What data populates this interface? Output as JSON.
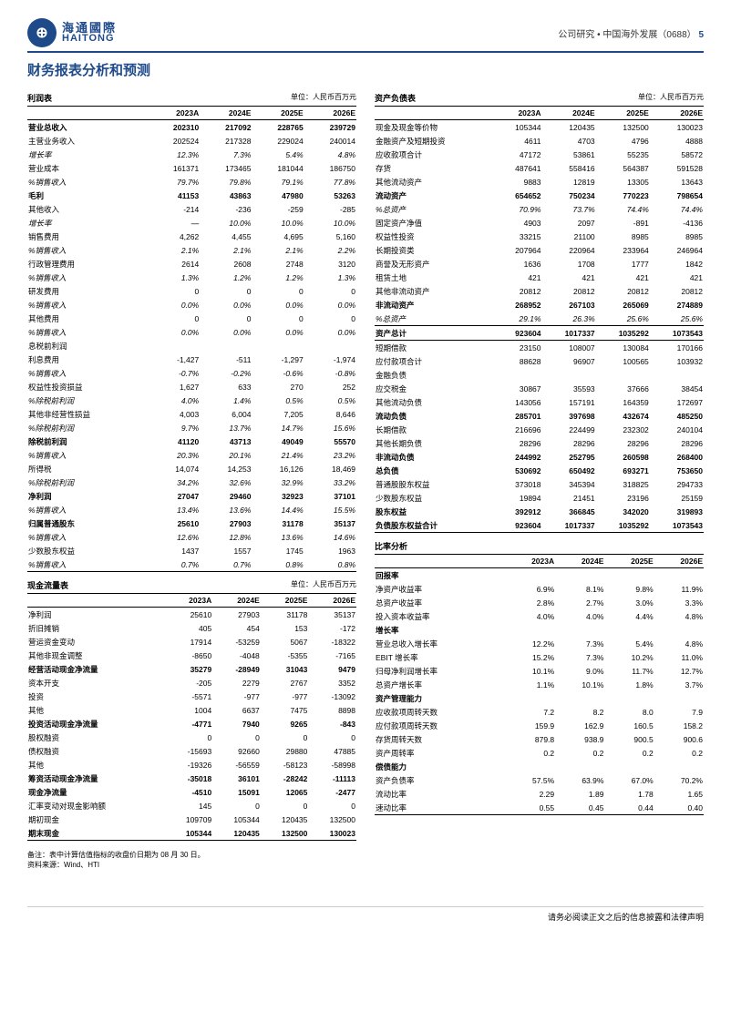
{
  "header": {
    "logo_cn": "海通國際",
    "logo_en": "HAITONG",
    "right": "公司研究 • 中国海外发展（0688）",
    "page": "5"
  },
  "title": "财务报表分析和预测",
  "unit": "单位：人民币百万元",
  "years": [
    "2023A",
    "2024E",
    "2025E",
    "2026E"
  ],
  "income": {
    "title": "利润表",
    "rows": [
      {
        "l": "营业总收入",
        "v": [
          "202310",
          "217092",
          "228765",
          "239729"
        ],
        "b": 1
      },
      {
        "l": "主营业务收入",
        "v": [
          "202524",
          "217328",
          "229024",
          "240014"
        ]
      },
      {
        "l": "增长率",
        "v": [
          "12.3%",
          "7.3%",
          "5.4%",
          "4.8%"
        ],
        "i": 1
      },
      {
        "l": "营业成本",
        "v": [
          "161371",
          "173465",
          "181044",
          "186750"
        ]
      },
      {
        "l": "%销售收入",
        "v": [
          "79.7%",
          "79.8%",
          "79.1%",
          "77.8%"
        ],
        "i": 1
      },
      {
        "l": "毛利",
        "v": [
          "41153",
          "43863",
          "47980",
          "53263"
        ],
        "b": 1
      },
      {
        "l": "其他收入",
        "v": [
          "-214",
          "-236",
          "-259",
          "-285"
        ]
      },
      {
        "l": "增长率",
        "v": [
          "—",
          "10.0%",
          "10.0%",
          "10.0%"
        ],
        "i": 1
      },
      {
        "l": "销售费用",
        "v": [
          "4,262",
          "4,455",
          "4,695",
          "5,160"
        ]
      },
      {
        "l": "%销售收入",
        "v": [
          "2.1%",
          "2.1%",
          "2.1%",
          "2.2%"
        ],
        "i": 1
      },
      {
        "l": "行政管理费用",
        "v": [
          "2614",
          "2608",
          "2748",
          "3120"
        ]
      },
      {
        "l": "%销售收入",
        "v": [
          "1.3%",
          "1.2%",
          "1.2%",
          "1.3%"
        ],
        "i": 1
      },
      {
        "l": "研发费用",
        "v": [
          "0",
          "0",
          "0",
          "0"
        ]
      },
      {
        "l": "%销售收入",
        "v": [
          "0.0%",
          "0.0%",
          "0.0%",
          "0.0%"
        ],
        "i": 1
      },
      {
        "l": "其他费用",
        "v": [
          "0",
          "0",
          "0",
          "0"
        ]
      },
      {
        "l": "%销售收入",
        "v": [
          "0.0%",
          "0.0%",
          "0.0%",
          "0.0%"
        ],
        "i": 1
      },
      {
        "l": "息税前利润",
        "v": [
          "",
          "",
          "",
          ""
        ]
      },
      {
        "l": "利息费用",
        "v": [
          "-1,427",
          "-511",
          "-1,297",
          "-1,974"
        ]
      },
      {
        "l": "%销售收入",
        "v": [
          "-0.7%",
          "-0.2%",
          "-0.6%",
          "-0.8%"
        ],
        "i": 1
      },
      {
        "l": "权益性投资损益",
        "v": [
          "1,627",
          "633",
          "270",
          "252"
        ]
      },
      {
        "l": "%除税前利润",
        "v": [
          "4.0%",
          "1.4%",
          "0.5%",
          "0.5%"
        ],
        "i": 1
      },
      {
        "l": "其他非经营性损益",
        "v": [
          "4,003",
          "6,004",
          "7,205",
          "8,646"
        ]
      },
      {
        "l": "%除税前利润",
        "v": [
          "9.7%",
          "13.7%",
          "14.7%",
          "15.6%"
        ],
        "i": 1
      },
      {
        "l": "除税前利润",
        "v": [
          "41120",
          "43713",
          "49049",
          "55570"
        ],
        "b": 1
      },
      {
        "l": "%销售收入",
        "v": [
          "20.3%",
          "20.1%",
          "21.4%",
          "23.2%"
        ],
        "i": 1
      },
      {
        "l": "所得税",
        "v": [
          "14,074",
          "14,253",
          "16,126",
          "18,469"
        ]
      },
      {
        "l": "%除税前利润",
        "v": [
          "34.2%",
          "32.6%",
          "32.9%",
          "33.2%"
        ],
        "i": 1
      },
      {
        "l": "净利润",
        "v": [
          "27047",
          "29460",
          "32923",
          "37101"
        ],
        "b": 1
      },
      {
        "l": "%销售收入",
        "v": [
          "13.4%",
          "13.6%",
          "14.4%",
          "15.5%"
        ],
        "i": 1
      },
      {
        "l": "归属普通股东",
        "v": [
          "25610",
          "27903",
          "31178",
          "35137"
        ],
        "b": 1
      },
      {
        "l": "%销售收入",
        "v": [
          "12.6%",
          "12.8%",
          "13.6%",
          "14.6%"
        ],
        "i": 1
      },
      {
        "l": "少数股东权益",
        "v": [
          "1437",
          "1557",
          "1745",
          "1963"
        ]
      },
      {
        "l": "%销售收入",
        "v": [
          "0.7%",
          "0.7%",
          "0.8%",
          "0.8%"
        ],
        "i": 1,
        "bb": 1
      }
    ]
  },
  "balance": {
    "title": "资产负债表",
    "rows": [
      {
        "l": "现金及现金等价物",
        "v": [
          "105344",
          "120435",
          "132500",
          "130023"
        ]
      },
      {
        "l": "金融资产及短期投资",
        "v": [
          "4611",
          "4703",
          "4796",
          "4888"
        ]
      },
      {
        "l": "应收款项合计",
        "v": [
          "47172",
          "53861",
          "55235",
          "58572"
        ]
      },
      {
        "l": "存货",
        "v": [
          "487641",
          "558416",
          "564387",
          "591528"
        ]
      },
      {
        "l": "其他流动资产",
        "v": [
          "9883",
          "12819",
          "13305",
          "13643"
        ]
      },
      {
        "l": "流动资产",
        "v": [
          "654652",
          "750234",
          "770223",
          "798654"
        ],
        "b": 1
      },
      {
        "l": "%总资产",
        "v": [
          "70.9%",
          "73.7%",
          "74.4%",
          "74.4%"
        ],
        "i": 1
      },
      {
        "l": "固定资产净值",
        "v": [
          "4903",
          "2097",
          "-891",
          "-4136"
        ]
      },
      {
        "l": "权益性投资",
        "v": [
          "33215",
          "21100",
          "8985",
          "8985"
        ]
      },
      {
        "l": "长期投资类",
        "v": [
          "207964",
          "220964",
          "233964",
          "246964"
        ]
      },
      {
        "l": "商誉及无形资产",
        "v": [
          "1636",
          "1708",
          "1777",
          "1842"
        ]
      },
      {
        "l": "租赁土地",
        "v": [
          "421",
          "421",
          "421",
          "421"
        ]
      },
      {
        "l": "其他非流动资产",
        "v": [
          "20812",
          "20812",
          "20812",
          "20812"
        ]
      },
      {
        "l": "非流动资产",
        "v": [
          "268952",
          "267103",
          "265069",
          "274889"
        ],
        "b": 1
      },
      {
        "l": "%总资产",
        "v": [
          "29.1%",
          "26.3%",
          "25.6%",
          "25.6%"
        ],
        "i": 1
      },
      {
        "l": "资产总计",
        "v": [
          "923604",
          "1017337",
          "1035292",
          "1073543"
        ],
        "b": 1,
        "bt": 1,
        "bb": 1
      },
      {
        "l": "短期借款",
        "v": [
          "23150",
          "108007",
          "130084",
          "170166"
        ]
      },
      {
        "l": "应付款项合计",
        "v": [
          "88628",
          "96907",
          "100565",
          "103932"
        ]
      },
      {
        "l": "金融负债",
        "v": [
          "",
          "",
          "",
          ""
        ]
      },
      {
        "l": "应交税金",
        "v": [
          "30867",
          "35593",
          "37666",
          "38454"
        ]
      },
      {
        "l": "其他流动负债",
        "v": [
          "143056",
          "157191",
          "164359",
          "172697"
        ]
      },
      {
        "l": "流动负债",
        "v": [
          "285701",
          "397698",
          "432674",
          "485250"
        ],
        "b": 1
      },
      {
        "l": "长期借款",
        "v": [
          "216696",
          "224499",
          "232302",
          "240104"
        ]
      },
      {
        "l": "其他长期负债",
        "v": [
          "28296",
          "28296",
          "28296",
          "28296"
        ]
      },
      {
        "l": "非流动负债",
        "v": [
          "244992",
          "252795",
          "260598",
          "268400"
        ],
        "b": 1
      },
      {
        "l": "总负债",
        "v": [
          "530692",
          "650492",
          "693271",
          "753650"
        ],
        "b": 1
      },
      {
        "l": "普通股股东权益",
        "v": [
          "373018",
          "345394",
          "318825",
          "294733"
        ]
      },
      {
        "l": "少数股东权益",
        "v": [
          "19894",
          "21451",
          "23196",
          "25159"
        ]
      },
      {
        "l": "股东权益",
        "v": [
          "392912",
          "366845",
          "342020",
          "319893"
        ],
        "b": 1
      },
      {
        "l": "负债股东权益合计",
        "v": [
          "923604",
          "1017337",
          "1035292",
          "1073543"
        ],
        "b": 1,
        "bb": 1
      }
    ]
  },
  "cashflow": {
    "title": "现金流量表",
    "rows": [
      {
        "l": "净利润",
        "v": [
          "25610",
          "27903",
          "31178",
          "35137"
        ]
      },
      {
        "l": "折旧摊销",
        "v": [
          "405",
          "454",
          "153",
          "-172"
        ]
      },
      {
        "l": "营运资金变动",
        "v": [
          "17914",
          "-53259",
          "5067",
          "-18322"
        ]
      },
      {
        "l": "其他非现金调整",
        "v": [
          "-8650",
          "-4048",
          "-5355",
          "-7165"
        ]
      },
      {
        "l": "经营活动现金净流量",
        "v": [
          "35279",
          "-28949",
          "31043",
          "9479"
        ],
        "b": 1
      },
      {
        "l": "资本开支",
        "v": [
          "-205",
          "2279",
          "2767",
          "3352"
        ]
      },
      {
        "l": "投资",
        "v": [
          "-5571",
          "-977",
          "-977",
          "-13092"
        ]
      },
      {
        "l": "其他",
        "v": [
          "1004",
          "6637",
          "7475",
          "8898"
        ]
      },
      {
        "l": "投资活动现金净流量",
        "v": [
          "-4771",
          "7940",
          "9265",
          "-843"
        ],
        "b": 1
      },
      {
        "l": "股权融资",
        "v": [
          "0",
          "0",
          "0",
          "0"
        ]
      },
      {
        "l": "债权融资",
        "v": [
          "-15693",
          "92660",
          "29880",
          "47885"
        ]
      },
      {
        "l": "其他",
        "v": [
          "-19326",
          "-56559",
          "-58123",
          "-58998"
        ]
      },
      {
        "l": "筹资活动现金净流量",
        "v": [
          "-35018",
          "36101",
          "-28242",
          "-11113"
        ],
        "b": 1
      },
      {
        "l": "现金净流量",
        "v": [
          "-4510",
          "15091",
          "12065",
          "-2477"
        ],
        "b": 1
      },
      {
        "l": "汇率变动对现金影响额",
        "v": [
          "145",
          "0",
          "0",
          "0"
        ]
      },
      {
        "l": "期初现金",
        "v": [
          "109709",
          "105344",
          "120435",
          "132500"
        ]
      },
      {
        "l": "期末现金",
        "v": [
          "105344",
          "120435",
          "132500",
          "130023"
        ],
        "b": 1,
        "bb": 1
      }
    ]
  },
  "ratios": {
    "title": "比率分析",
    "rows": [
      {
        "l": "回报率",
        "v": [
          "",
          "",
          "",
          ""
        ],
        "b": 1
      },
      {
        "l": "净资产收益率",
        "v": [
          "6.9%",
          "8.1%",
          "9.8%",
          "11.9%"
        ]
      },
      {
        "l": "总资产收益率",
        "v": [
          "2.8%",
          "2.7%",
          "3.0%",
          "3.3%"
        ]
      },
      {
        "l": "投入资本收益率",
        "v": [
          "4.0%",
          "4.0%",
          "4.4%",
          "4.8%"
        ]
      },
      {
        "l": "增长率",
        "v": [
          "",
          "",
          "",
          ""
        ],
        "b": 1
      },
      {
        "l": "营业总收入增长率",
        "v": [
          "12.2%",
          "7.3%",
          "5.4%",
          "4.8%"
        ]
      },
      {
        "l": "EBIT 增长率",
        "v": [
          "15.2%",
          "7.3%",
          "10.2%",
          "11.0%"
        ]
      },
      {
        "l": "归母净利润增长率",
        "v": [
          "10.1%",
          "9.0%",
          "11.7%",
          "12.7%"
        ]
      },
      {
        "l": "总资产增长率",
        "v": [
          "1.1%",
          "10.1%",
          "1.8%",
          "3.7%"
        ]
      },
      {
        "l": "资产管理能力",
        "v": [
          "",
          "",
          "",
          ""
        ],
        "b": 1
      },
      {
        "l": "应收款项周转天数",
        "v": [
          "7.2",
          "8.2",
          "8.0",
          "7.9"
        ]
      },
      {
        "l": "应付款项周转天数",
        "v": [
          "159.9",
          "162.9",
          "160.5",
          "158.2"
        ]
      },
      {
        "l": "存货周转天数",
        "v": [
          "879.8",
          "938.9",
          "900.5",
          "900.6"
        ]
      },
      {
        "l": "资产周转率",
        "v": [
          "0.2",
          "0.2",
          "0.2",
          "0.2"
        ]
      },
      {
        "l": "偿债能力",
        "v": [
          "",
          "",
          "",
          ""
        ],
        "b": 1
      },
      {
        "l": "资产负债率",
        "v": [
          "57.5%",
          "63.9%",
          "67.0%",
          "70.2%"
        ]
      },
      {
        "l": "流动比率",
        "v": [
          "2.29",
          "1.89",
          "1.78",
          "1.65"
        ]
      },
      {
        "l": "速动比率",
        "v": [
          "0.55",
          "0.45",
          "0.44",
          "0.40"
        ],
        "bb": 1
      }
    ]
  },
  "notes": {
    "l1": "备注：表中计算估值指标的收盘价日期为 08 月 30 日。",
    "l2": "资料来源：Wind、HTI"
  },
  "footer": "请务必阅读正文之后的信息披露和法律声明"
}
